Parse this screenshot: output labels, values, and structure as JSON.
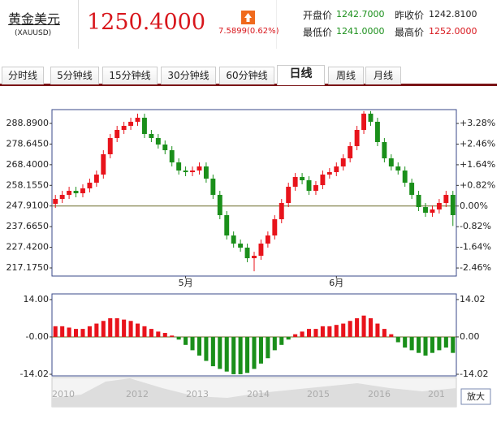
{
  "header": {
    "name": "黄金美元",
    "code": "(XAUUSD)",
    "price": "1250.4000",
    "change": "7.5899(0.62%)",
    "fields": [
      {
        "label": "开盘价",
        "value": "1242.7000"
      },
      {
        "label": "昨收价",
        "value": "1242.8100"
      },
      {
        "label": "最低价",
        "value": "1241.0000"
      },
      {
        "label": "最高价",
        "value": "1252.0000"
      }
    ]
  },
  "tabs": [
    "分时线",
    "5分钟线",
    "15分钟线",
    "30分钟线",
    "60分钟线",
    "日线",
    "周线",
    "月线"
  ],
  "chart_data": [
    {
      "type": "candlestick",
      "up_color": "#e8131b",
      "down_color": "#1a8f1a",
      "categories": [
        null,
        null,
        null,
        null,
        null,
        null,
        null,
        null,
        null,
        null,
        null,
        null,
        null,
        null,
        null,
        null,
        null,
        null,
        null,
        "5月",
        null,
        null,
        null,
        null,
        null,
        null,
        null,
        null,
        null,
        null,
        null,
        null,
        null,
        null,
        null,
        null,
        null,
        null,
        null,
        null,
        null,
        "6月",
        null,
        null,
        null,
        null,
        null,
        null,
        null,
        null,
        null,
        null,
        null,
        null,
        null,
        null,
        null,
        null,
        null
      ],
      "open": [
        249.0,
        251.41,
        253.43,
        255.44,
        254.23,
        256.65,
        259.47,
        263.5,
        273.58,
        281.63,
        285.67,
        287.68,
        289.7,
        291.71,
        283.65,
        281.63,
        278.41,
        275.59,
        269.54,
        265.51,
        264.71,
        265.51,
        267.53,
        261.49,
        253.43,
        243.36,
        233.28,
        229.25,
        227.24,
        222.0,
        223.21,
        229.25,
        233.28,
        241.34,
        249.4,
        257.46,
        262.29,
        260.68,
        255.44,
        258.26,
        263.5,
        264.71,
        267.53,
        271.56,
        277.61,
        285.67,
        293.73,
        289.7,
        279.62,
        271.56,
        267.53,
        265.51,
        259.47,
        253.43,
        247.38,
        244.56,
        246.18,
        249.4,
        253.43
      ],
      "high": [
        253.41,
        255.43,
        257.44,
        257.44,
        258.65,
        261.47,
        265.5,
        275.58,
        283.63,
        287.67,
        289.68,
        291.7,
        293.71,
        293.71,
        285.65,
        283.63,
        280.41,
        277.59,
        271.54,
        267.51,
        267.51,
        269.53,
        269.53,
        263.49,
        255.43,
        245.36,
        235.28,
        231.25,
        229.24,
        225.21,
        231.25,
        235.28,
        243.34,
        251.4,
        259.46,
        264.29,
        264.29,
        262.68,
        260.26,
        265.5,
        266.71,
        269.53,
        273.56,
        279.61,
        287.67,
        295.0,
        295.0,
        291.7,
        281.62,
        273.56,
        269.53,
        267.51,
        261.47,
        255.43,
        249.38,
        248.18,
        251.4,
        255.43,
        255.43
      ],
      "low": [
        247.0,
        249.41,
        251.43,
        252.23,
        252.23,
        254.65,
        257.47,
        261.5,
        271.58,
        279.63,
        283.67,
        285.68,
        287.7,
        281.65,
        279.63,
        276.41,
        273.59,
        267.54,
        263.51,
        262.71,
        262.71,
        263.51,
        259.49,
        251.43,
        241.36,
        231.28,
        227.25,
        225.24,
        220.0,
        215.5,
        221.21,
        227.25,
        231.28,
        239.34,
        247.4,
        255.46,
        258.68,
        253.44,
        253.44,
        256.26,
        261.5,
        262.71,
        265.53,
        269.56,
        275.61,
        283.67,
        287.7,
        277.62,
        269.56,
        265.53,
        263.51,
        257.47,
        251.43,
        245.38,
        242.56,
        242.56,
        244.18,
        247.4,
        238.0
      ],
      "close": [
        251.41,
        253.43,
        255.44,
        254.23,
        256.65,
        259.47,
        263.5,
        273.58,
        281.63,
        285.67,
        287.68,
        289.7,
        291.71,
        283.65,
        281.63,
        278.41,
        275.59,
        269.54,
        265.51,
        264.71,
        265.51,
        267.53,
        261.49,
        253.43,
        243.36,
        233.28,
        229.25,
        227.24,
        222.0,
        223.21,
        229.25,
        233.28,
        241.34,
        249.4,
        257.46,
        262.29,
        260.68,
        255.44,
        258.26,
        263.5,
        264.71,
        267.53,
        271.56,
        277.61,
        285.67,
        293.73,
        289.7,
        279.62,
        271.56,
        267.53,
        265.51,
        259.47,
        253.43,
        247.38,
        244.56,
        246.18,
        249.4,
        253.43,
        243.36
      ],
      "ylim": [
        213.15,
        295.74
      ],
      "yticks": [
        {
          "value": 288.89,
          "label": "288.8900"
        },
        {
          "value": 278.645,
          "label": "278.6450"
        },
        {
          "value": 268.4,
          "label": "268.4000"
        },
        {
          "value": 258.155,
          "label": "258.1550"
        },
        {
          "value": 247.91,
          "label": "247.9100"
        },
        {
          "value": 237.665,
          "label": "237.6650"
        },
        {
          "value": 227.42,
          "label": "227.4200"
        },
        {
          "value": 217.175,
          "label": "217.1750"
        }
      ],
      "y2lim": [
        -2.78,
        3.83
      ],
      "y2ticks": [
        {
          "value": 3.28,
          "label": "+3.28%"
        },
        {
          "value": 2.46,
          "label": "+2.46%"
        },
        {
          "value": 1.64,
          "label": "+1.64%"
        },
        {
          "value": 0.82,
          "label": "+0.82%"
        },
        {
          "value": 0,
          "label": "0.00%"
        },
        {
          "value": -0.82,
          "label": "-0.82%"
        },
        {
          "value": -1.64,
          "label": "-1.64%"
        },
        {
          "value": -2.46,
          "label": "-2.46%"
        }
      ]
    },
    {
      "type": "bar",
      "up_color": "#e8131b",
      "down_color": "#1a8f1a",
      "values": [
        4,
        4,
        3.5,
        3,
        3,
        4,
        5,
        6,
        7,
        7,
        6.5,
        6,
        5,
        4,
        3,
        2,
        1.5,
        0.5,
        -1,
        -3,
        -5,
        -7,
        -9,
        -11,
        -12,
        -13,
        -14,
        -14,
        -13.5,
        -12,
        -10,
        -8,
        -5,
        -3,
        -1,
        1,
        2,
        3,
        3,
        4,
        4,
        4.5,
        5,
        6,
        7,
        8,
        7,
        5,
        3,
        1,
        -2,
        -4,
        -5,
        -6,
        -7,
        -6,
        -5,
        -4,
        -6
      ],
      "ylim": [
        -14.63,
        16.13
      ],
      "yticks": [
        {
          "value": 14,
          "label": "14.00"
        },
        {
          "value": 0,
          "label": "-0.00"
        },
        -14.02
      ],
      "y2lim": [
        -14.63,
        16.13
      ],
      "y2ticks": [
        14.02,
        {
          "value": 0,
          "label": "0.00"
        },
        -14.02
      ]
    }
  ],
  "navigator": {
    "labels": [
      "2010",
      "2012",
      "2013",
      "2014",
      "2015",
      "2016",
      "201"
    ],
    "button": "放大"
  }
}
